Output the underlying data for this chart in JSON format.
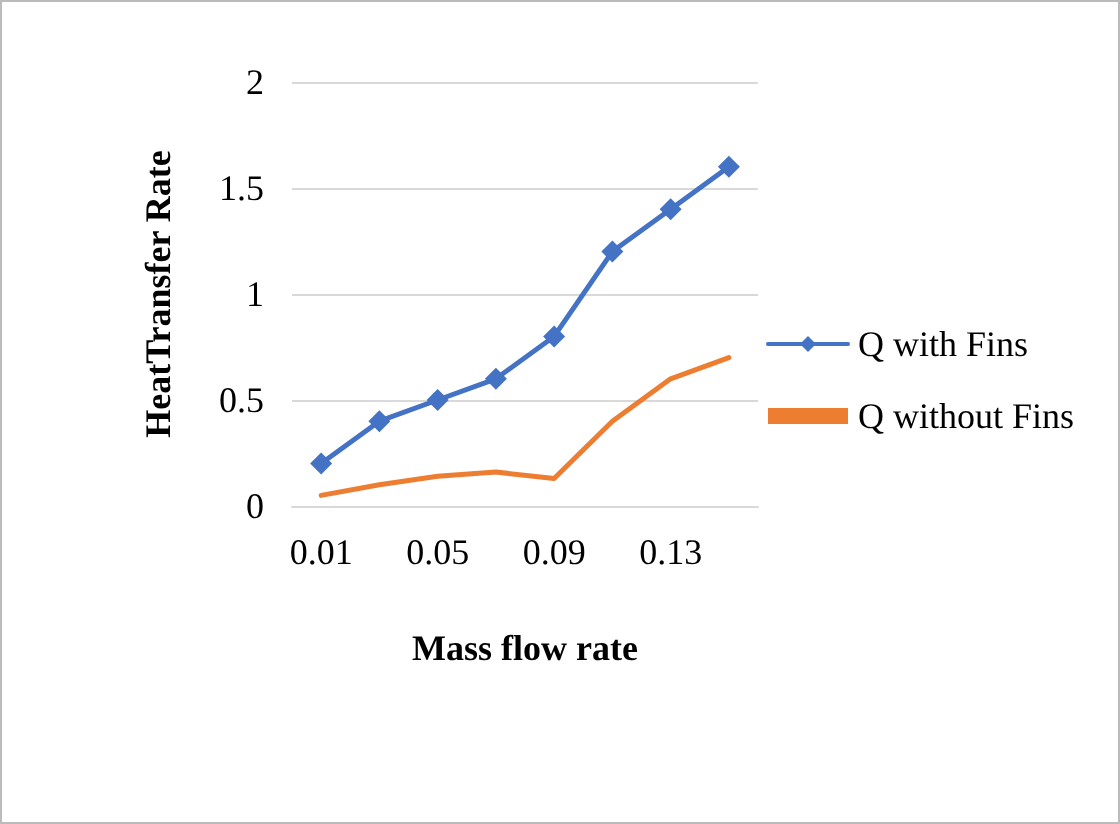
{
  "chart_data": {
    "type": "line",
    "xlabel": "Mass flow rate",
    "ylabel": "HeatTransfer Rate",
    "categories": [
      "0.01",
      null,
      "0.05",
      null,
      "0.09",
      null,
      "0.13",
      null
    ],
    "series": [
      {
        "name": "Q with Fins",
        "color": "#4472c4",
        "marker": "diamond",
        "values": [
          0.2,
          0.4,
          0.5,
          0.6,
          0.8,
          1.2,
          1.4,
          1.6
        ]
      },
      {
        "name": "Q without Fins",
        "color": "#ed7d31",
        "marker": "none",
        "values": [
          0.05,
          0.1,
          0.14,
          0.16,
          0.13,
          0.4,
          0.6,
          0.7
        ]
      }
    ],
    "ylim": [
      0,
      2
    ],
    "yticks": [
      0,
      0.5,
      1,
      1.5,
      2
    ],
    "grid": "y",
    "legend": "right",
    "line_style": "solid"
  }
}
